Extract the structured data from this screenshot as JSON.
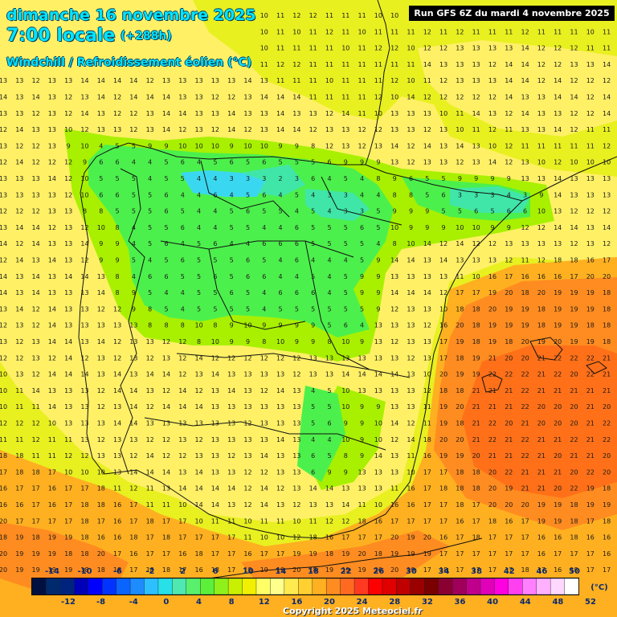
{
  "title": {
    "date": "dimanche 16 novembre 2025",
    "time": "7:00 locale",
    "lead": "(+288h)",
    "parameter": "Windchill / Refroidissement éolien (°C)"
  },
  "run_info": "Run GFS 6Z du mardi 4 novembre 2025",
  "copyright": "Copyright 2025 Meteociel.fr",
  "legend": {
    "unit": "(°C)",
    "top_labels": [
      "-14",
      "-10",
      "-6",
      "-2",
      "2",
      "6",
      "10",
      "14",
      "18",
      "22",
      "26",
      "30",
      "34",
      "38",
      "42",
      "46",
      "50"
    ],
    "bottom_labels": [
      "-12",
      "-8",
      "-4",
      "0",
      "4",
      "8",
      "12",
      "16",
      "20",
      "24",
      "28",
      "32",
      "36",
      "40",
      "44",
      "48",
      "52"
    ],
    "colors": [
      "#001040",
      "#002a6e",
      "#00247d",
      "#0000b8",
      "#0000ff",
      "#0033ff",
      "#0a64ff",
      "#1e8cff",
      "#2cc0ff",
      "#27e0e8",
      "#4fe8b0",
      "#58f06c",
      "#5cf03a",
      "#90f01a",
      "#c8f000",
      "#f0f000",
      "#ffff66",
      "#ffff8c",
      "#ffea50",
      "#ffd030",
      "#ffb020",
      "#ff8c20",
      "#ff6a20",
      "#ff3a20",
      "#ff0000",
      "#e00000",
      "#c00000",
      "#9a0000",
      "#7a0000",
      "#8a0030",
      "#a0005a",
      "#c0008c",
      "#e000b8",
      "#ff00e0",
      "#ff40f0",
      "#ff80ff",
      "#ffb0ff",
      "#ffd8ff",
      "#ffffff"
    ]
  },
  "field": {
    "base_color": "#e8f020",
    "regions": [
      {
        "name": "cold-north",
        "color": "#4cf04c",
        "value": 5
      },
      {
        "name": "coldest-cantabria",
        "color": "#3ad8f0",
        "value": 3
      },
      {
        "name": "cold-pyrenees",
        "color": "#40e6a8",
        "value": 3
      },
      {
        "name": "cool",
        "color": "#a8f000",
        "value": 9
      },
      {
        "name": "mild",
        "color": "#fff066",
        "value": 13
      },
      {
        "name": "warm",
        "color": "#ffb020",
        "value": 17
      },
      {
        "name": "warmer-sea",
        "color": "#ff8c20",
        "value": 19
      },
      {
        "name": "warmest-sea",
        "color": "#ff7018",
        "value": 21
      }
    ]
  }
}
